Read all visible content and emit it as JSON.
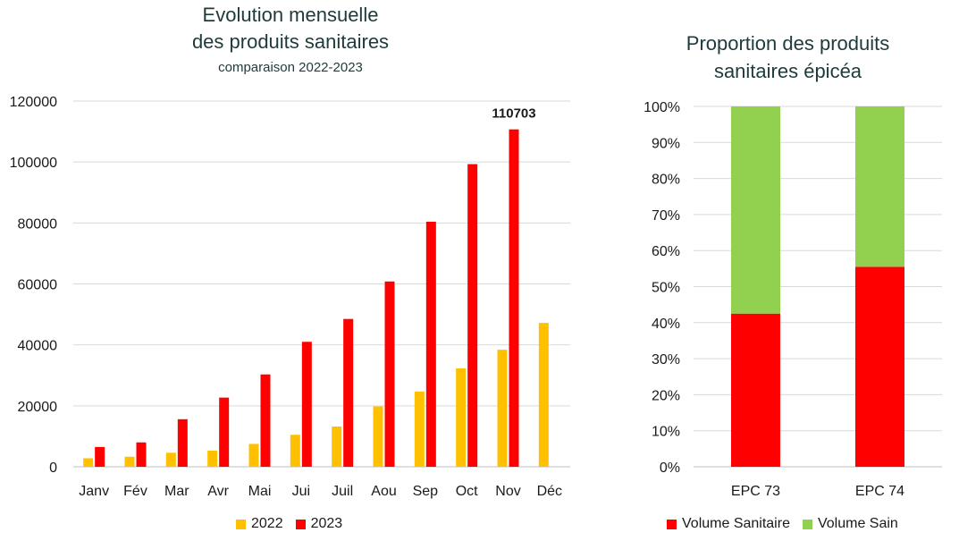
{
  "chart_data": [
    {
      "type": "bar",
      "title_line1": "Evolution mensuelle",
      "title_line2": "des produits sanitaires",
      "subtitle": "comparaison 2022-2023",
      "categories": [
        "Janv",
        "Fév",
        "Mar",
        "Avr",
        "Mai",
        "Jui",
        "Juil",
        "Aou",
        "Sep",
        "Oct",
        "Nov",
        "Déc"
      ],
      "series": [
        {
          "name": "2022",
          "color": "#FFC000",
          "values": [
            2800,
            3300,
            4600,
            5300,
            7500,
            10500,
            13200,
            19800,
            24700,
            32300,
            38400,
            47200
          ]
        },
        {
          "name": "2023",
          "color": "#FF0000",
          "values": [
            6500,
            8000,
            15600,
            22700,
            30300,
            41000,
            48500,
            60800,
            80400,
            99300,
            110703,
            null
          ]
        }
      ],
      "ylim": [
        0,
        120000
      ],
      "yticks": [
        "0",
        "20000",
        "40000",
        "60000",
        "80000",
        "100000",
        "120000"
      ],
      "annotation": {
        "label": "110703",
        "series": "2023",
        "category": "Nov"
      },
      "grid": true,
      "legend": "bottom"
    },
    {
      "type": "bar",
      "stacked": "percent",
      "title_line1": "Proportion des produits",
      "title_line2": "sanitaires épicéa",
      "categories": [
        "EPC 73",
        "EPC 74"
      ],
      "series": [
        {
          "name": "Volume Sanitaire",
          "color": "#FF0000",
          "values": [
            42.5,
            55.5
          ]
        },
        {
          "name": "Volume Sain",
          "color": "#92D050",
          "values": [
            57.5,
            44.5
          ]
        }
      ],
      "ylim": [
        0,
        100
      ],
      "yticks": [
        "0%",
        "10%",
        "20%",
        "30%",
        "40%",
        "50%",
        "60%",
        "70%",
        "80%",
        "90%",
        "100%"
      ],
      "grid": true,
      "legend": "bottom"
    }
  ]
}
